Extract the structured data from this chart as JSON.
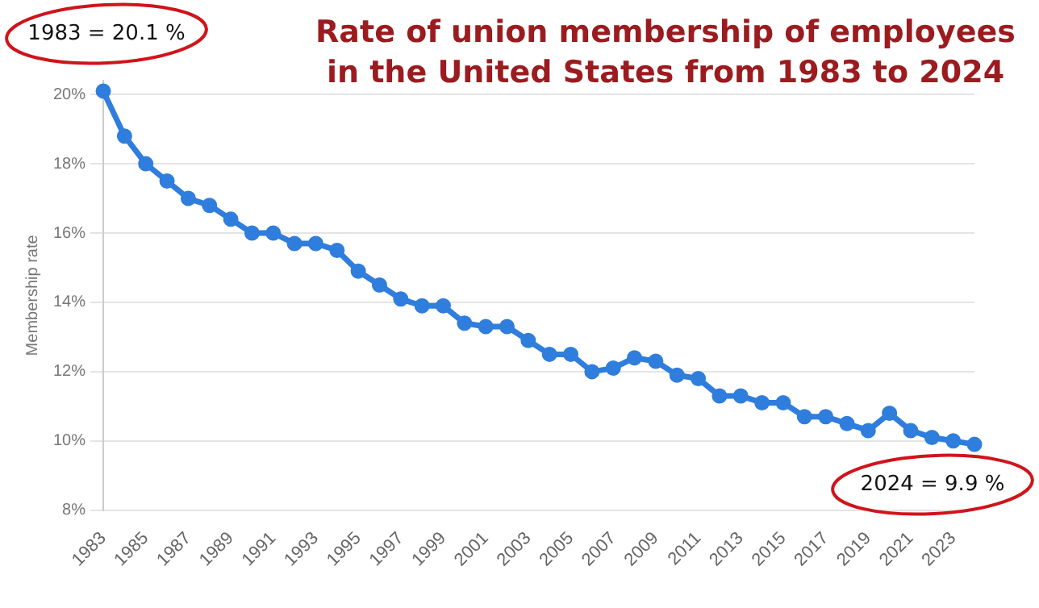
{
  "chart_data": {
    "type": "line",
    "title": "Rate of union membership of employees in the United States from 1983 to 2024",
    "ylabel": "Membership rate",
    "categories": [
      "1983",
      null,
      "1985",
      null,
      "1987",
      null,
      "1989",
      null,
      "1991",
      null,
      "1993",
      null,
      "1995",
      null,
      "1997",
      null,
      "1999",
      null,
      "2001",
      null,
      "2003",
      null,
      "2005",
      null,
      "2007",
      null,
      "2009",
      null,
      "2011",
      null,
      "2013",
      null,
      "2015",
      null,
      "2017",
      null,
      "2019",
      null,
      "2021",
      null,
      "2023",
      null
    ],
    "series": [
      {
        "color": "#2f7ddc",
        "values": [
          20.1,
          18.8,
          18.0,
          17.5,
          17.0,
          16.8,
          16.4,
          16.0,
          16.0,
          15.7,
          15.7,
          15.5,
          14.9,
          14.5,
          14.1,
          13.9,
          13.9,
          13.4,
          13.3,
          13.3,
          12.9,
          12.5,
          12.5,
          12.0,
          12.1,
          12.4,
          12.3,
          11.9,
          11.8,
          11.3,
          11.3,
          11.1,
          11.1,
          10.7,
          10.7,
          10.5,
          10.3,
          10.8,
          10.3,
          10.1,
          10.0,
          9.9
        ]
      }
    ],
    "ylim": [
      8,
      20.4
    ],
    "yticks": [
      {
        "value": 8,
        "label": "8%"
      },
      {
        "value": 10,
        "label": "10%"
      },
      {
        "value": 12,
        "label": "12%"
      },
      {
        "value": 14,
        "label": "14%"
      },
      {
        "value": 16,
        "label": "16%"
      },
      {
        "value": 18,
        "label": "18%"
      },
      {
        "value": 20,
        "label": "20%"
      }
    ],
    "grid": "y",
    "legend": false,
    "marker": "circle",
    "line_style": "solid",
    "annotations": [
      {
        "text": "1983 = 20.1 %",
        "x": "1983",
        "y": 20.1
      },
      "2024 = 9.9 %"
    ]
  }
}
